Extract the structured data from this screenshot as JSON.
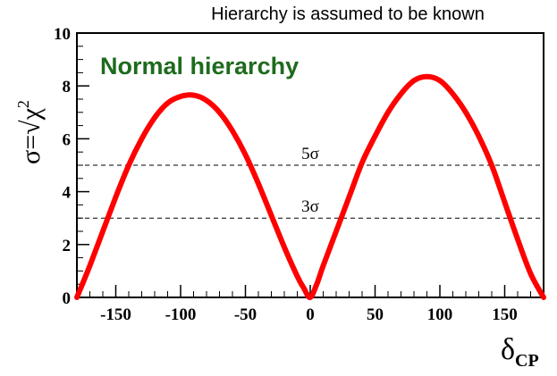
{
  "chart_data": {
    "type": "line",
    "title": "Hierarchy is assumed to be known",
    "annotation": "Normal hierarchy",
    "xlabel": {
      "main": "δ",
      "sub": "CP"
    },
    "ylabel": {
      "main": "σ=√χ",
      "sup": "2"
    },
    "xlim": [
      -180,
      180
    ],
    "ylim": [
      0,
      10
    ],
    "xticks": [
      -150,
      -100,
      -50,
      0,
      50,
      100,
      150
    ],
    "xtick_labels": [
      "-150",
      "-100",
      "-50",
      "0",
      "50",
      "100",
      "150"
    ],
    "yticks": [
      0,
      2,
      4,
      6,
      8,
      10
    ],
    "ytick_labels": [
      "0",
      "2",
      "4",
      "6",
      "8",
      "10"
    ],
    "grid": false,
    "reference_lines": [
      {
        "y": 5,
        "label": "5σ",
        "style": "dashed"
      },
      {
        "y": 3,
        "label": "3σ",
        "style": "dashed"
      }
    ],
    "series": [
      {
        "color": "#ff0000",
        "x": [
          -180,
          -170,
          -160,
          -150,
          -140,
          -130,
          -120,
          -110,
          -100,
          -90,
          -80,
          -70,
          -60,
          -50,
          -40,
          -30,
          -20,
          -10,
          -5,
          0,
          5,
          10,
          20,
          30,
          40,
          50,
          60,
          70,
          80,
          90,
          100,
          110,
          120,
          130,
          140,
          150,
          160,
          170,
          180
        ],
        "y": [
          0,
          1.2,
          2.5,
          3.8,
          5.0,
          6.0,
          6.8,
          7.35,
          7.6,
          7.65,
          7.45,
          7.0,
          6.3,
          5.4,
          4.3,
          3.1,
          1.9,
          0.8,
          0.35,
          0,
          0.5,
          1.2,
          2.5,
          3.8,
          5.1,
          6.1,
          7.0,
          7.7,
          8.2,
          8.35,
          8.2,
          7.7,
          7.0,
          6.1,
          5.0,
          3.6,
          2.2,
          0.9,
          0
        ]
      }
    ]
  }
}
